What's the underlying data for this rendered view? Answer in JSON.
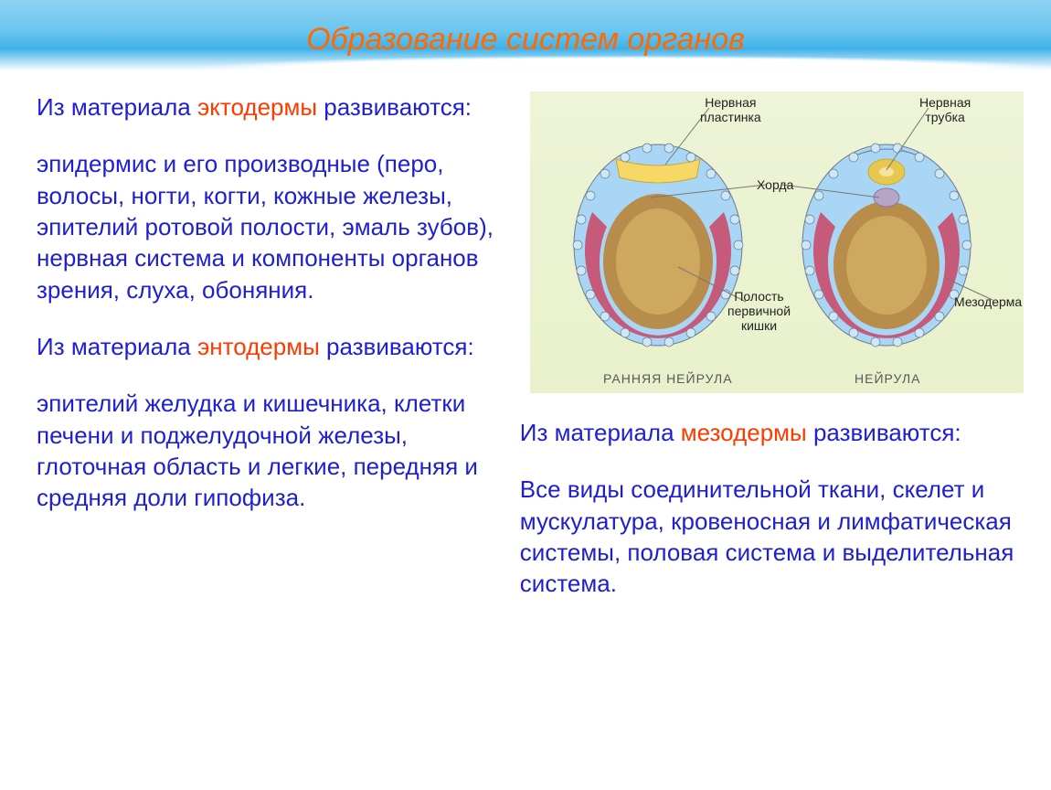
{
  "colors": {
    "title": "#ff6a00",
    "body_text": "#1e1ed2",
    "highlight": "#ff3a00",
    "sky_top": "#8ed3f2",
    "sky_mid": "#3eb1e9",
    "diagram_bg": "#e8f1cb",
    "caption": "#585858",
    "label": "#222222"
  },
  "typography": {
    "title_fontsize": 34,
    "title_style": "italic",
    "body_fontsize": 26,
    "diagram_label_fontsize": 14
  },
  "title": "Образование систем органов",
  "ectoderm": {
    "intro_pre": "Из материала ",
    "intro_hl": "эктодермы",
    "intro_post": " развиваются:",
    "body": "эпидермис и его производные (перо, волосы, ногти, когти, кожные железы, эпителий ротовой полости, эмаль зубов), нервная система и компоненты органов зрения, слуха, обоняния."
  },
  "endoderm": {
    "intro_pre": "Из материала ",
    "intro_hl": "энтодермы",
    "intro_post": " развиваются:",
    "body": "эпителий желудка и кишечника, клетки печени и поджелудочной железы, глоточная область и легкие, передняя и средняя доли гипофиза."
  },
  "mesoderm": {
    "intro_pre": "Из материала ",
    "intro_hl": "мезодермы",
    "intro_post": " развиваются:",
    "body": "Все виды соединительной ткани, скелет и мускулатура, кровеносная и лимфатическая системы, половая система и выделительная система."
  },
  "diagram": {
    "caption_left": "РАННЯЯ НЕЙРУЛА",
    "caption_right": "НЕЙРУЛА",
    "labels": {
      "neural_plate": "Нервная\nпластинка",
      "neural_tube": "Нервная\nтрубка",
      "chord": "Хорда",
      "gut_cavity": "Полость\nпервичной\nкишки",
      "mesoderm": "Мезодерма"
    },
    "embryo_colors": {
      "ectoderm_outer": "#a9d6f4",
      "ectoderm_cell": "#cce7f8",
      "mesoderm_fill": "#c94d6e",
      "endoderm_fill": "#b88c4a",
      "gut_lumen": "#cfa860",
      "neural_plate": "#f7d766",
      "neural_tube": "#e7c84f",
      "chord": "#b7a5c7",
      "cell_stroke": "#6b7a8a"
    }
  }
}
